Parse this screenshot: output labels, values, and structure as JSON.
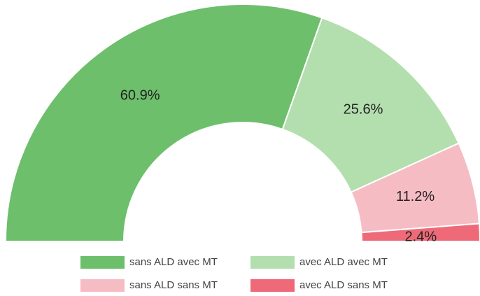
{
  "chart_data": {
    "type": "half-donut",
    "categories": [
      "sans ALD avec MT",
      "avec ALD avec MT",
      "sans ALD sans MT",
      "avec ALD sans MT"
    ],
    "values": [
      60.9,
      25.6,
      11.2,
      2.4
    ],
    "value_labels": [
      "60.9%",
      "25.6%",
      "11.2%",
      "2.4%"
    ],
    "colors": [
      "#6dbf6b",
      "#b3deae",
      "#f6bcc4",
      "#ee6a78"
    ],
    "legend": "bottom"
  }
}
